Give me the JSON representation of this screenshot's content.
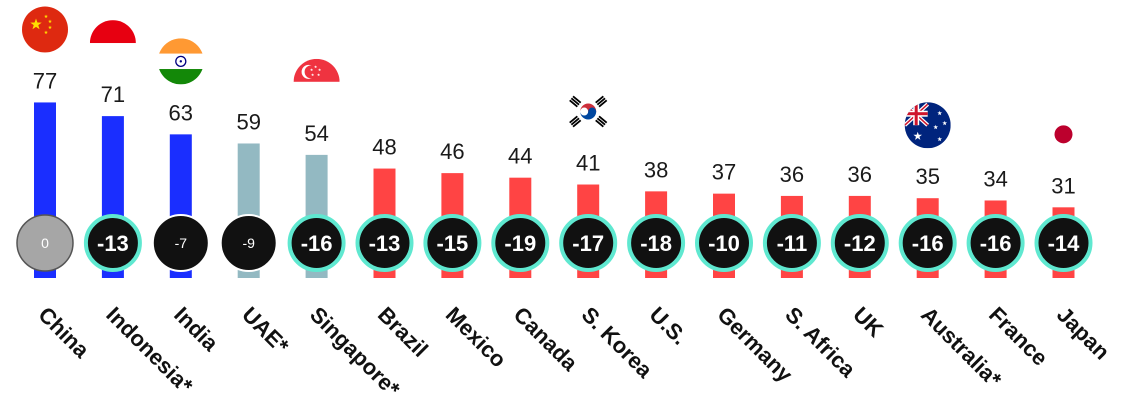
{
  "chart_data": {
    "type": "bar",
    "categories": [
      "China",
      "Indonesia*",
      "India",
      "UAE*",
      "Singapore*",
      "Brazil",
      "Mexico",
      "Canada",
      "S. Korea",
      "U.S.",
      "Germany",
      "S. Africa",
      "UK",
      "Australia*",
      "France",
      "Japan"
    ],
    "values": [
      77,
      71,
      63,
      59,
      54,
      48,
      46,
      44,
      41,
      38,
      37,
      36,
      36,
      35,
      34,
      31
    ],
    "changes": [
      "0",
      "-13",
      "-7",
      "-9",
      "-16",
      "-13",
      "-15",
      "-19",
      "-17",
      "-18",
      "-10",
      "-11",
      "-12",
      "-16",
      "-16",
      "-14"
    ],
    "change_style": [
      "neutral",
      "large",
      "small",
      "small",
      "large",
      "large",
      "large",
      "large",
      "large",
      "large",
      "large",
      "large",
      "large",
      "large",
      "large",
      "large"
    ],
    "bar_group": [
      "high",
      "high",
      "high",
      "mid",
      "mid",
      "low",
      "low",
      "low",
      "low",
      "low",
      "low",
      "low",
      "low",
      "low",
      "low",
      "low"
    ],
    "flags": [
      "china-flag-icon",
      "indonesia-flag-icon",
      "india-flag-icon",
      null,
      "singapore-flag-icon",
      null,
      null,
      null,
      "south-korea-flag-icon",
      null,
      null,
      null,
      null,
      "australia-flag-icon",
      null,
      "japan-flag-icon"
    ],
    "colors": {
      "high": "#1a2eff",
      "mid": "#93b9c2",
      "low": "#ff4444",
      "badge_fill": "#111111",
      "badge_ring": "#5fe8d0",
      "neutral_fill": "#a6a6a6",
      "neutral_ring": "#555555"
    },
    "ylim": [
      0,
      100
    ],
    "title": "",
    "xlabel": "",
    "ylabel": ""
  }
}
